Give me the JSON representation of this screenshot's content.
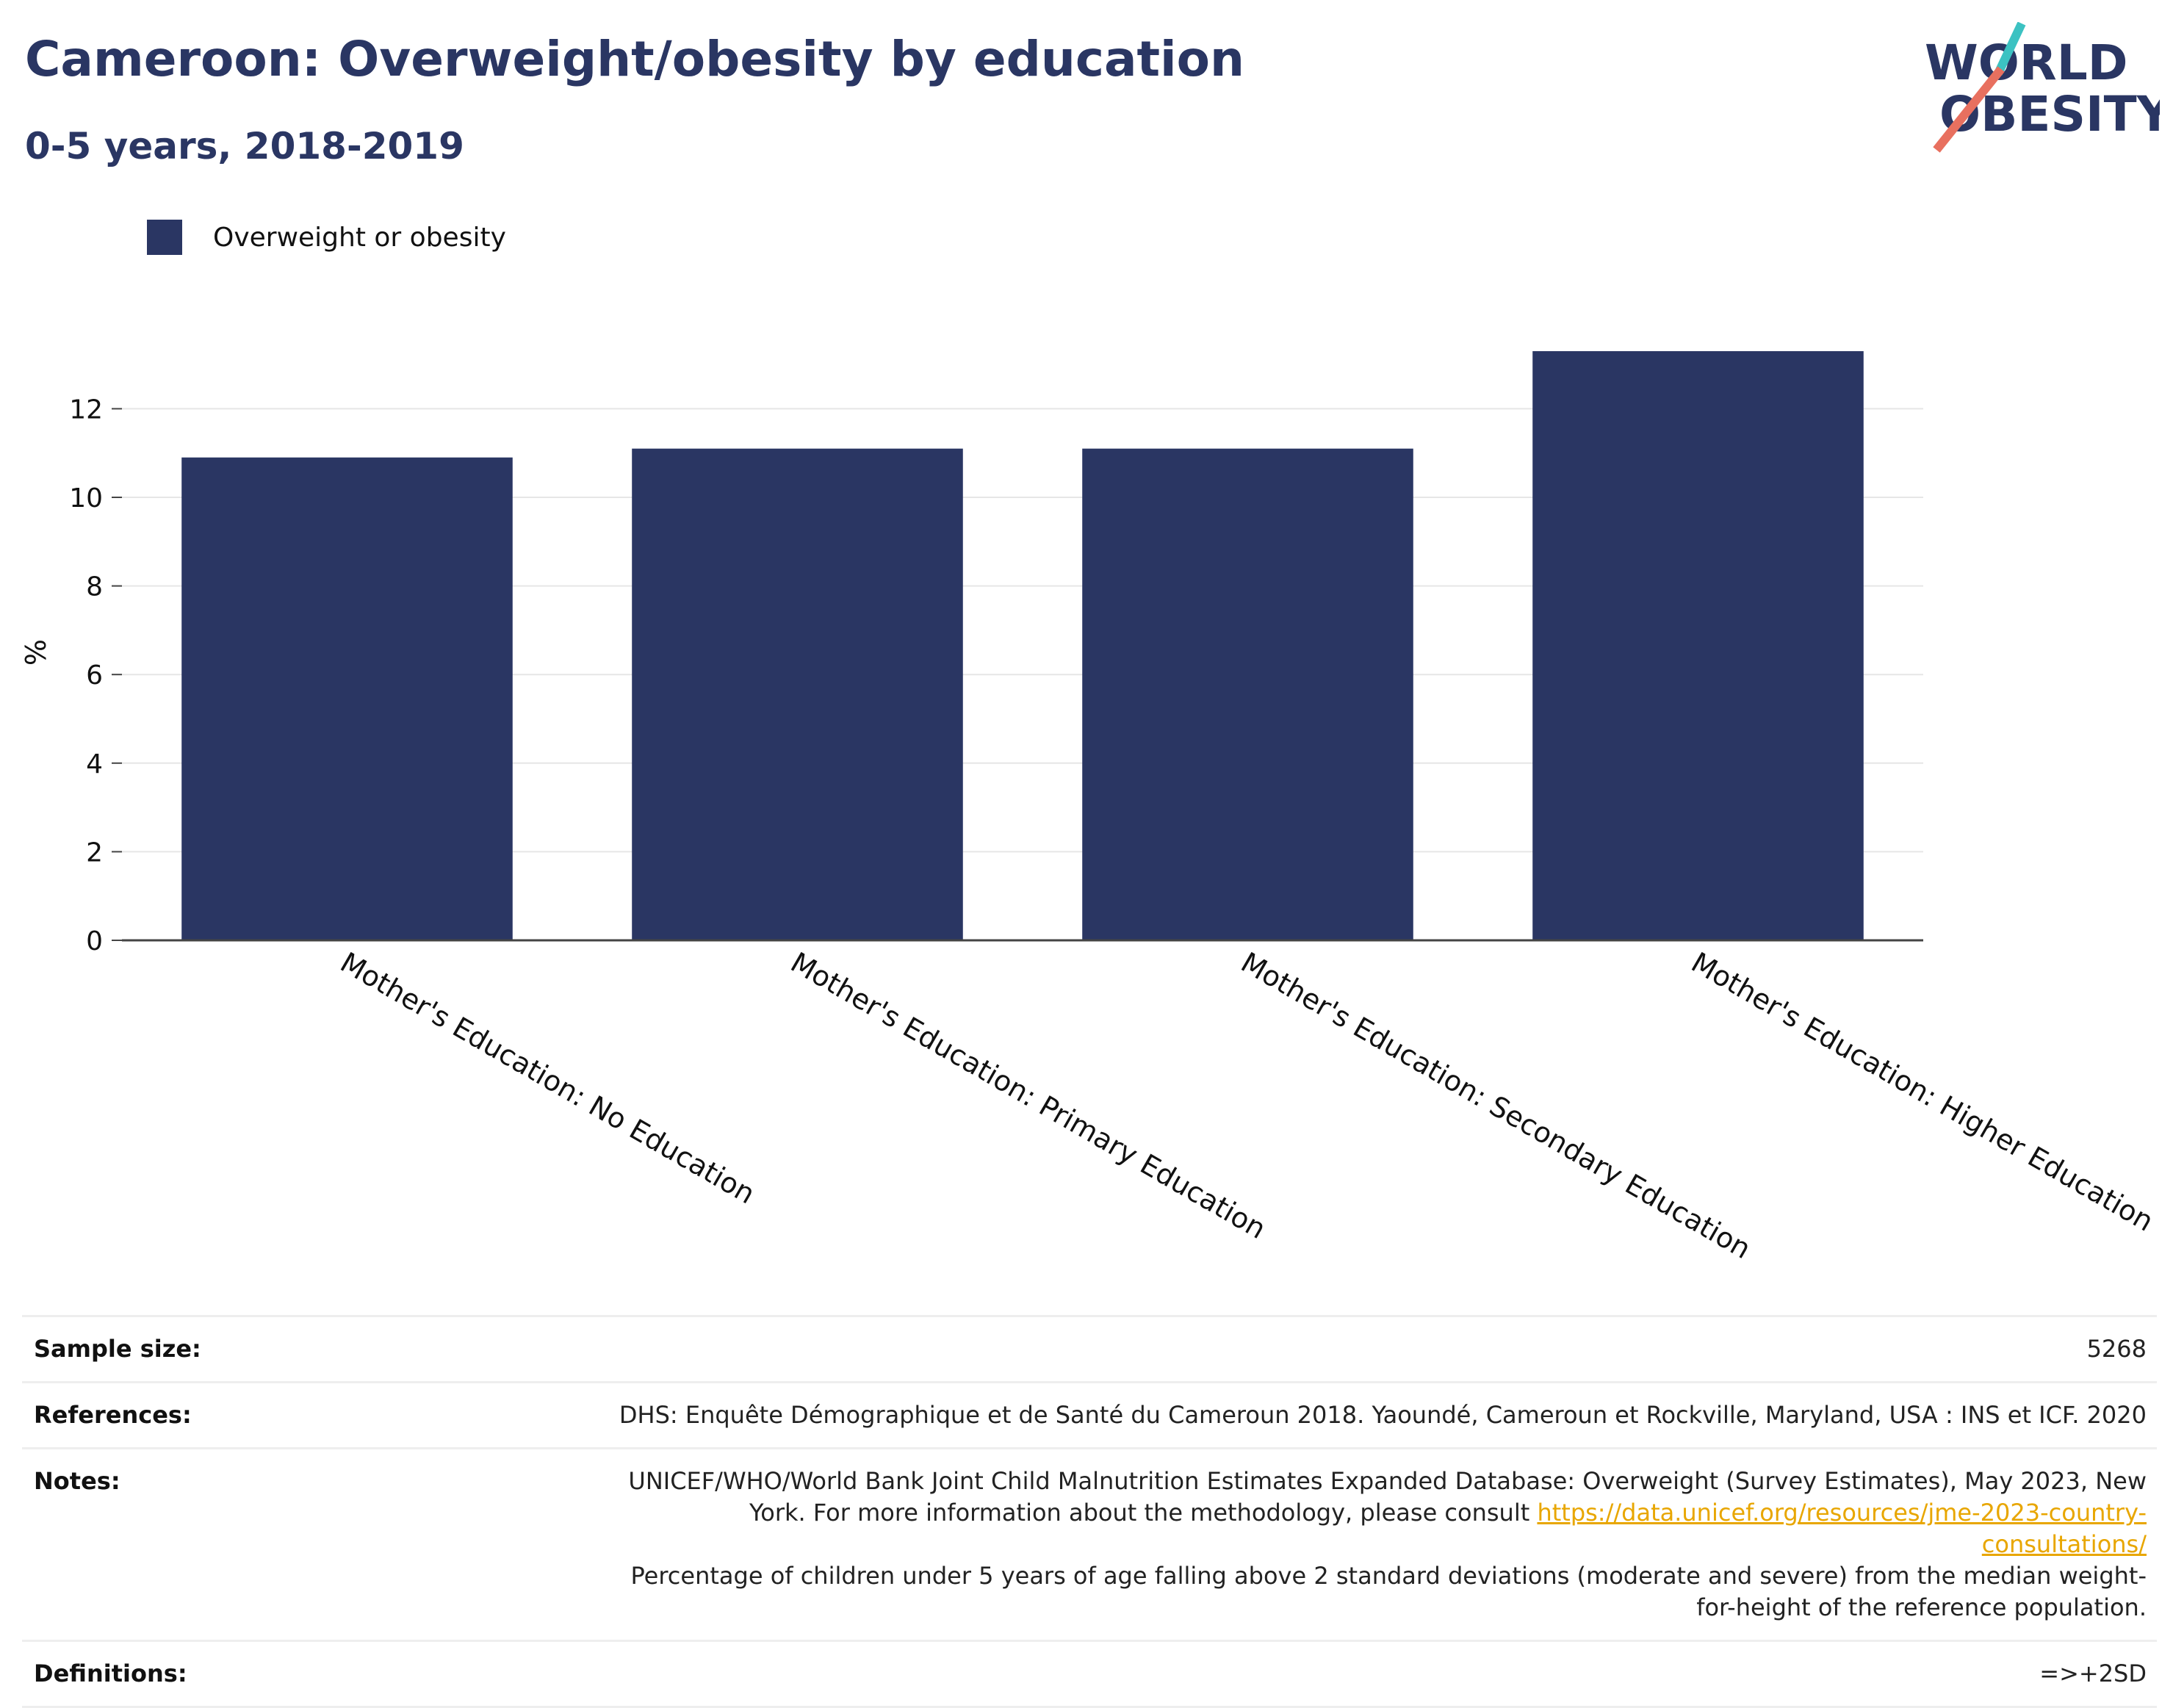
{
  "header": {
    "title": "Cameroon: Overweight/obesity by education",
    "subtitle": "0-5 years, 2018-2019"
  },
  "logo": {
    "line1": "WORLD",
    "line2": "OBESITY",
    "colors": {
      "text": "#2a3663",
      "slash_red": "#e8705f",
      "slash_teal": "#3cc2c2"
    }
  },
  "legend": {
    "label": "Overweight or obesity",
    "color": "#2a3663"
  },
  "chart_data": {
    "type": "bar",
    "categories": [
      "Mother's Education: No Education",
      "Mother's Education: Primary Education",
      "Mother's Education: Secondary Education",
      "Mother's Education: Higher Education"
    ],
    "series": [
      {
        "name": "Overweight or obesity",
        "values": [
          10.9,
          11.1,
          11.1,
          13.3
        ],
        "color": "#2a3663"
      }
    ],
    "ylabel": "%",
    "xlabel": "",
    "ylim": [
      0,
      13.3
    ],
    "yticks": [
      0,
      2,
      4,
      6,
      8,
      10,
      12
    ],
    "grid": true,
    "legend_position": "top-left"
  },
  "meta": {
    "sample_size_label": "Sample size:",
    "sample_size_value": "5268",
    "references_label": "References:",
    "references_value": "DHS: Enquête Démographique et de Santé du Cameroun 2018. Yaoundé, Cameroun et Rockville, Maryland, USA : INS et ICF. 2020",
    "notes_label": "Notes:",
    "notes_value_pre": "UNICEF/WHO/World Bank Joint Child Malnutrition Estimates Expanded Database: Overweight (Survey Estimates), May 2023, New York. For more information about the methodology, please consult",
    "notes_link": "https://data.unicef.org/resources/jme-2023-country-consultations/",
    "notes_value_post": "Percentage of children under 5 years of age falling above 2 standard deviations (moderate and severe) from the median weight-for-height of the reference population.",
    "definitions_label": "Definitions:",
    "definitions_value": "=>+2SD"
  }
}
